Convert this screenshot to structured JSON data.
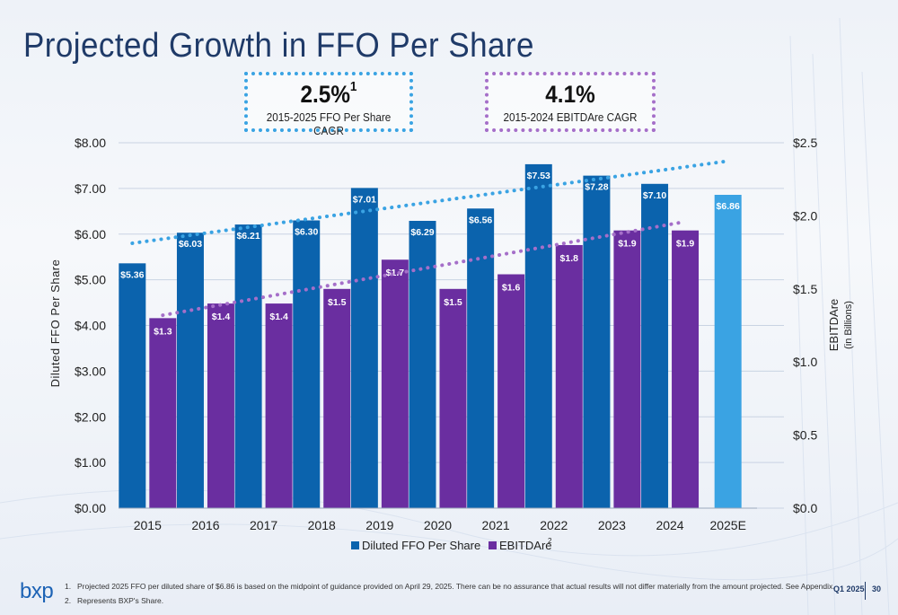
{
  "title": "Projected Growth in FFO Per Share",
  "cagr_boxes": [
    {
      "value": "2.5%",
      "sup": "1",
      "label": "2015-2025 FFO Per Share CAGR"
    },
    {
      "value": "4.1%",
      "sup": "",
      "label": "2015-2024 EBITDAre CAGR"
    }
  ],
  "colors": {
    "ffo": "#0b63ad",
    "ffo_projected": "#3aa3e3",
    "ebitda": "#6a2ea0",
    "ffo_trend": "#3aa3e3",
    "ebitda_trend": "#a56fc9"
  },
  "chart_data": {
    "type": "bar",
    "categories": [
      "2015",
      "2016",
      "2017",
      "2018",
      "2019",
      "2020",
      "2021",
      "2022",
      "2023",
      "2024",
      "2025E"
    ],
    "series": [
      {
        "name": "Diluted FFO Per Share",
        "axis": "left",
        "values": [
          5.36,
          6.03,
          6.21,
          6.3,
          7.01,
          6.29,
          6.56,
          7.53,
          7.28,
          7.1,
          6.86
        ],
        "labels": [
          "$5.36",
          "$6.03",
          "$6.21",
          "$6.30",
          "$7.01",
          "$6.29",
          "$6.56",
          "$7.53",
          "$7.28",
          "$7.10",
          "$6.86"
        ]
      },
      {
        "name": "EBITDAre",
        "name_sup": "2",
        "axis": "right",
        "values": [
          1.3,
          1.4,
          1.4,
          1.5,
          1.7,
          1.5,
          1.6,
          1.8,
          1.9,
          1.9,
          null
        ],
        "labels": [
          "$1.3",
          "$1.4",
          "$1.4",
          "$1.5",
          "$1.7",
          "$1.5",
          "$1.6",
          "$1.8",
          "$1.9",
          "$1.9",
          ""
        ]
      }
    ],
    "trendlines": [
      {
        "series": "Diluted FFO Per Share",
        "axis": "left",
        "start": 5.8,
        "end": 7.6
      },
      {
        "series": "EBITDAre",
        "axis": "right",
        "start": 1.32,
        "end": 1.96
      }
    ],
    "ylabel": "Diluted FFO Per Share",
    "y2label": "EBITDAre",
    "y2sublabel": "(in Billions)",
    "ylim": [
      0,
      8
    ],
    "y2lim": [
      0,
      2.5
    ],
    "yticks": [
      "$0.00",
      "$1.00",
      "$2.00",
      "$3.00",
      "$4.00",
      "$5.00",
      "$6.00",
      "$7.00",
      "$8.00"
    ],
    "y2ticks": [
      "$0.0",
      "$0.5",
      "$1.0",
      "$1.5",
      "$2.0",
      "$2.5"
    ],
    "legend_position": "bottom",
    "grid": true
  },
  "footnotes": [
    {
      "num": "1.",
      "text": "Projected 2025 FFO per diluted share of $6.86 is based on the midpoint of guidance provided on April 29, 2025.  There can be no assurance that actual results will not differ materially from the amount projected.  See Appendix."
    },
    {
      "num": "2.",
      "text": "Represents BXP's Share."
    }
  ],
  "logo_text": "bxp",
  "quarter": "Q1 2025",
  "page_number": "30"
}
